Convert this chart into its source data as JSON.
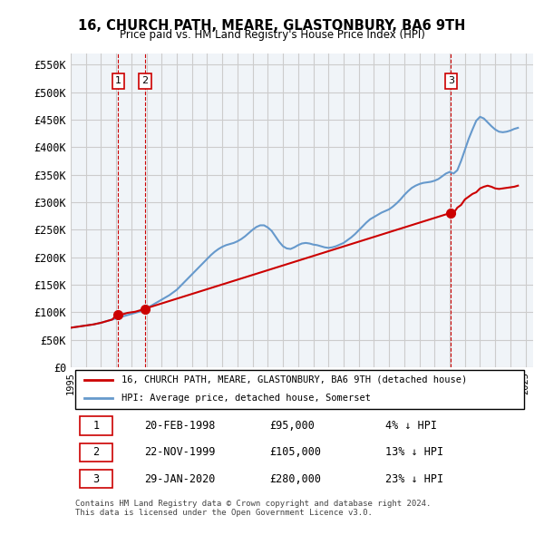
{
  "title": "16, CHURCH PATH, MEARE, GLASTONBURY, BA6 9TH",
  "subtitle": "Price paid vs. HM Land Registry's House Price Index (HPI)",
  "xlim": [
    1995,
    2025.5
  ],
  "ylim": [
    0,
    570000
  ],
  "yticks": [
    0,
    50000,
    100000,
    150000,
    200000,
    250000,
    300000,
    350000,
    400000,
    450000,
    500000,
    550000
  ],
  "ytick_labels": [
    "£0",
    "£50K",
    "£100K",
    "£150K",
    "£200K",
    "£250K",
    "£300K",
    "£350K",
    "£400K",
    "£450K",
    "£500K",
    "£550K"
  ],
  "xticks": [
    1995,
    1996,
    1997,
    1998,
    1999,
    2000,
    2001,
    2002,
    2003,
    2004,
    2005,
    2006,
    2007,
    2008,
    2009,
    2010,
    2011,
    2012,
    2013,
    2014,
    2015,
    2016,
    2017,
    2018,
    2019,
    2020,
    2021,
    2022,
    2023,
    2024,
    2025
  ],
  "sale_dates": [
    1998.13,
    1999.9,
    2020.08
  ],
  "sale_prices": [
    95000,
    105000,
    280000
  ],
  "sale_labels": [
    "1",
    "2",
    "3"
  ],
  "hpi_color": "#6699cc",
  "price_color": "#cc0000",
  "grid_color": "#cccccc",
  "bg_color": "#f0f4f8",
  "legend_label_price": "16, CHURCH PATH, MEARE, GLASTONBURY, BA6 9TH (detached house)",
  "legend_label_hpi": "HPI: Average price, detached house, Somerset",
  "table_data": [
    [
      "1",
      "20-FEB-1998",
      "£95,000",
      "4% ↓ HPI"
    ],
    [
      "2",
      "22-NOV-1999",
      "£105,000",
      "13% ↓ HPI"
    ],
    [
      "3",
      "29-JAN-2020",
      "£280,000",
      "23% ↓ HPI"
    ]
  ],
  "footer": "Contains HM Land Registry data © Crown copyright and database right 2024.\nThis data is licensed under the Open Government Licence v3.0.",
  "hpi_x": [
    1995.0,
    1995.25,
    1995.5,
    1995.75,
    1996.0,
    1996.25,
    1996.5,
    1996.75,
    1997.0,
    1997.25,
    1997.5,
    1997.75,
    1998.0,
    1998.25,
    1998.5,
    1998.75,
    1999.0,
    1999.25,
    1999.5,
    1999.75,
    2000.0,
    2000.25,
    2000.5,
    2000.75,
    2001.0,
    2001.25,
    2001.5,
    2001.75,
    2002.0,
    2002.25,
    2002.5,
    2002.75,
    2003.0,
    2003.25,
    2003.5,
    2003.75,
    2004.0,
    2004.25,
    2004.5,
    2004.75,
    2005.0,
    2005.25,
    2005.5,
    2005.75,
    2006.0,
    2006.25,
    2006.5,
    2006.75,
    2007.0,
    2007.25,
    2007.5,
    2007.75,
    2008.0,
    2008.25,
    2008.5,
    2008.75,
    2009.0,
    2009.25,
    2009.5,
    2009.75,
    2010.0,
    2010.25,
    2010.5,
    2010.75,
    2011.0,
    2011.25,
    2011.5,
    2011.75,
    2012.0,
    2012.25,
    2012.5,
    2012.75,
    2013.0,
    2013.25,
    2013.5,
    2013.75,
    2014.0,
    2014.25,
    2014.5,
    2014.75,
    2015.0,
    2015.25,
    2015.5,
    2015.75,
    2016.0,
    2016.25,
    2016.5,
    2016.75,
    2017.0,
    2017.25,
    2017.5,
    2017.75,
    2018.0,
    2018.25,
    2018.5,
    2018.75,
    2019.0,
    2019.25,
    2019.5,
    2019.75,
    2020.0,
    2020.25,
    2020.5,
    2020.75,
    2021.0,
    2021.25,
    2021.5,
    2021.75,
    2022.0,
    2022.25,
    2022.5,
    2022.75,
    2023.0,
    2023.25,
    2023.5,
    2023.75,
    2024.0,
    2024.25,
    2024.5
  ],
  "hpi_y": [
    72000,
    73000,
    74000,
    75000,
    76000,
    77000,
    78000,
    79500,
    81000,
    83000,
    85000,
    87000,
    89000,
    91000,
    93000,
    95000,
    97000,
    99000,
    101000,
    104000,
    107500,
    111000,
    115000,
    119000,
    123000,
    127000,
    131000,
    136000,
    141000,
    148000,
    155000,
    162000,
    169000,
    176000,
    183000,
    190000,
    197000,
    204000,
    210000,
    215000,
    219000,
    222000,
    224000,
    226000,
    229000,
    233000,
    238000,
    244000,
    250000,
    255000,
    258000,
    258000,
    254000,
    248000,
    238000,
    228000,
    220000,
    216000,
    215000,
    218000,
    222000,
    225000,
    226000,
    225000,
    223000,
    222000,
    220000,
    218000,
    217000,
    218000,
    220000,
    223000,
    226000,
    231000,
    236000,
    242000,
    249000,
    256000,
    263000,
    269000,
    273000,
    277000,
    281000,
    284000,
    287000,
    292000,
    298000,
    305000,
    313000,
    320000,
    326000,
    330000,
    333000,
    335000,
    336000,
    337000,
    339000,
    342000,
    347000,
    352000,
    355000,
    352000,
    358000,
    375000,
    395000,
    415000,
    432000,
    448000,
    455000,
    452000,
    445000,
    438000,
    432000,
    428000,
    427000,
    428000,
    430000,
    433000,
    435000
  ],
  "price_x": [
    1995.0,
    1995.25,
    1995.5,
    1995.75,
    1996.0,
    1996.25,
    1996.5,
    1996.75,
    1997.0,
    1997.25,
    1997.5,
    1997.75,
    1998.0,
    1998.25,
    1998.5,
    1998.75,
    1999.0,
    1999.25,
    1999.5,
    1999.75,
    2000.0,
    2020.0,
    2020.25,
    2020.5,
    2020.75,
    2021.0,
    2021.25,
    2021.5,
    2021.75,
    2022.0,
    2022.25,
    2022.5,
    2022.75,
    2023.0,
    2023.25,
    2023.5,
    2023.75,
    2024.0,
    2024.25,
    2024.5
  ],
  "price_y": [
    72000,
    73000,
    74000,
    75000,
    76000,
    77000,
    78000,
    79500,
    81000,
    83000,
    85000,
    87000,
    95000,
    95000,
    97000,
    99000,
    100000,
    101000,
    103000,
    105000,
    107500,
    280000,
    280000,
    290000,
    295000,
    305000,
    310000,
    315000,
    318000,
    325000,
    328000,
    330000,
    328000,
    325000,
    324000,
    325000,
    326000,
    327000,
    328000,
    330000
  ],
  "vline_dates": [
    1998.13,
    1999.9,
    2020.08
  ],
  "vline_color": "#cc0000"
}
